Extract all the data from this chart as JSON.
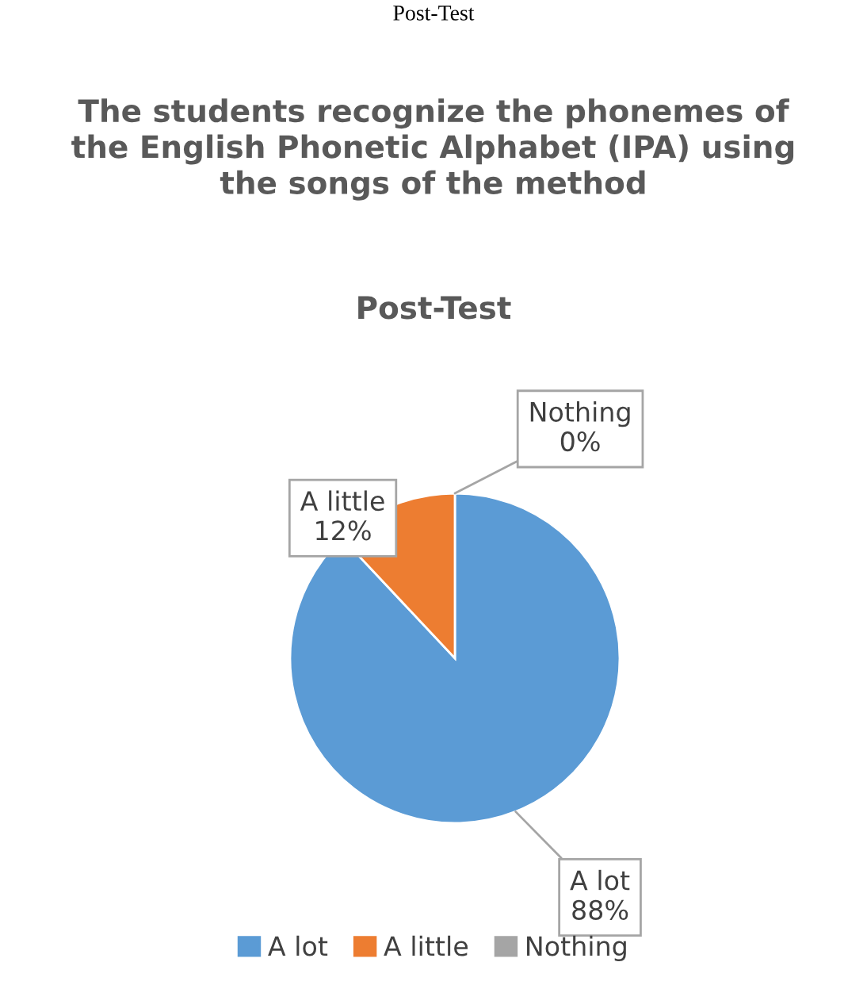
{
  "chart_data": {
    "type": "pie",
    "title": "The students recognize the phonemes of the English Phonetic Alphabet (IPA) using the songs of the method",
    "subtitle": "Post-Test",
    "annotations": [
      "Post-Test"
    ],
    "categories": [
      "A lot",
      "A little",
      "Nothing"
    ],
    "values": [
      88,
      12,
      0
    ],
    "colors": [
      "#5b9bd5",
      "#ed7d31",
      "#a5a5a5"
    ],
    "value_labels": [
      "A lot\n88%",
      "A little\n12%",
      "Nothing\n0%"
    ],
    "legend": "bottom"
  }
}
